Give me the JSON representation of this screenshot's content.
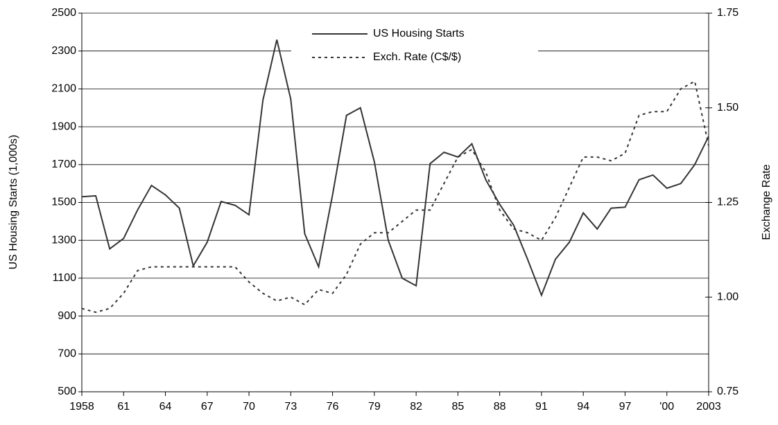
{
  "chart_data": {
    "type": "line",
    "y_label": "US Housing Starts (1,000s)",
    "y2_label": "Exchange Rate",
    "x": [
      1958,
      1959,
      1960,
      1961,
      1962,
      1963,
      1964,
      1965,
      1966,
      1967,
      1968,
      1969,
      1970,
      1971,
      1972,
      1973,
      1974,
      1975,
      1976,
      1977,
      1978,
      1979,
      1980,
      1981,
      1982,
      1983,
      1984,
      1985,
      1986,
      1987,
      1988,
      1989,
      1990,
      1991,
      1992,
      1993,
      1994,
      1995,
      1996,
      1997,
      1998,
      1999,
      2000,
      2001,
      2002,
      2003
    ],
    "series": [
      {
        "name": "US Housing Starts",
        "color": "#333333",
        "dash": "solid",
        "values": [
          1530,
          1535,
          1255,
          1310,
          1460,
          1590,
          1540,
          1470,
          1165,
          1290,
          1505,
          1485,
          1435,
          2040,
          2360,
          2045,
          1335,
          1160,
          1540,
          1960,
          2000,
          1715,
          1300,
          1100,
          1060,
          1705,
          1765,
          1740,
          1810,
          1620,
          1490,
          1380,
          1200,
          1010,
          1200,
          1290,
          1445,
          1360,
          1470,
          1475,
          1620,
          1645,
          1575,
          1600,
          1700,
          1850
        ]
      },
      {
        "name": "Exch. Rate (C$/$)",
        "color": "#333333",
        "dash": "dashed",
        "axis": "y2",
        "values": [
          0.97,
          0.96,
          0.97,
          1.01,
          1.07,
          1.08,
          1.08,
          1.08,
          1.08,
          1.08,
          1.08,
          1.08,
          1.04,
          1.01,
          0.99,
          1.0,
          0.98,
          1.02,
          1.01,
          1.06,
          1.14,
          1.17,
          1.17,
          1.2,
          1.23,
          1.23,
          1.3,
          1.37,
          1.39,
          1.33,
          1.23,
          1.18,
          1.17,
          1.15,
          1.21,
          1.29,
          1.37,
          1.37,
          1.36,
          1.38,
          1.48,
          1.49,
          1.49,
          1.55,
          1.57,
          1.4
        ]
      }
    ],
    "xlim": [
      1958,
      2003
    ],
    "xticks": [
      1958,
      {
        "value": 1961,
        "label": "61"
      },
      {
        "value": 1964,
        "label": "64"
      },
      {
        "value": 1967,
        "label": "67"
      },
      {
        "value": 1970,
        "label": "70"
      },
      {
        "value": 1973,
        "label": "73"
      },
      {
        "value": 1976,
        "label": "76"
      },
      {
        "value": 1979,
        "label": "79"
      },
      {
        "value": 1982,
        "label": "82"
      },
      {
        "value": 1985,
        "label": "85"
      },
      {
        "value": 1988,
        "label": "88"
      },
      {
        "value": 1991,
        "label": "91"
      },
      {
        "value": 1994,
        "label": "94"
      },
      {
        "value": 1997,
        "label": "97"
      },
      {
        "value": 2000,
        "label": "'00"
      },
      2003
    ],
    "ylim": [
      500,
      2500
    ],
    "yticks": [
      500,
      700,
      900,
      1100,
      1300,
      1500,
      1700,
      1900,
      2100,
      2300,
      2500
    ],
    "y2lim": [
      0.75,
      1.75
    ],
    "y2ticks": [
      0.75,
      {
        "value": 1,
        "label": "1.00"
      },
      1.25,
      {
        "value": 1.5,
        "label": "1.50"
      },
      1.75
    ],
    "grid": true,
    "legend": "top"
  }
}
